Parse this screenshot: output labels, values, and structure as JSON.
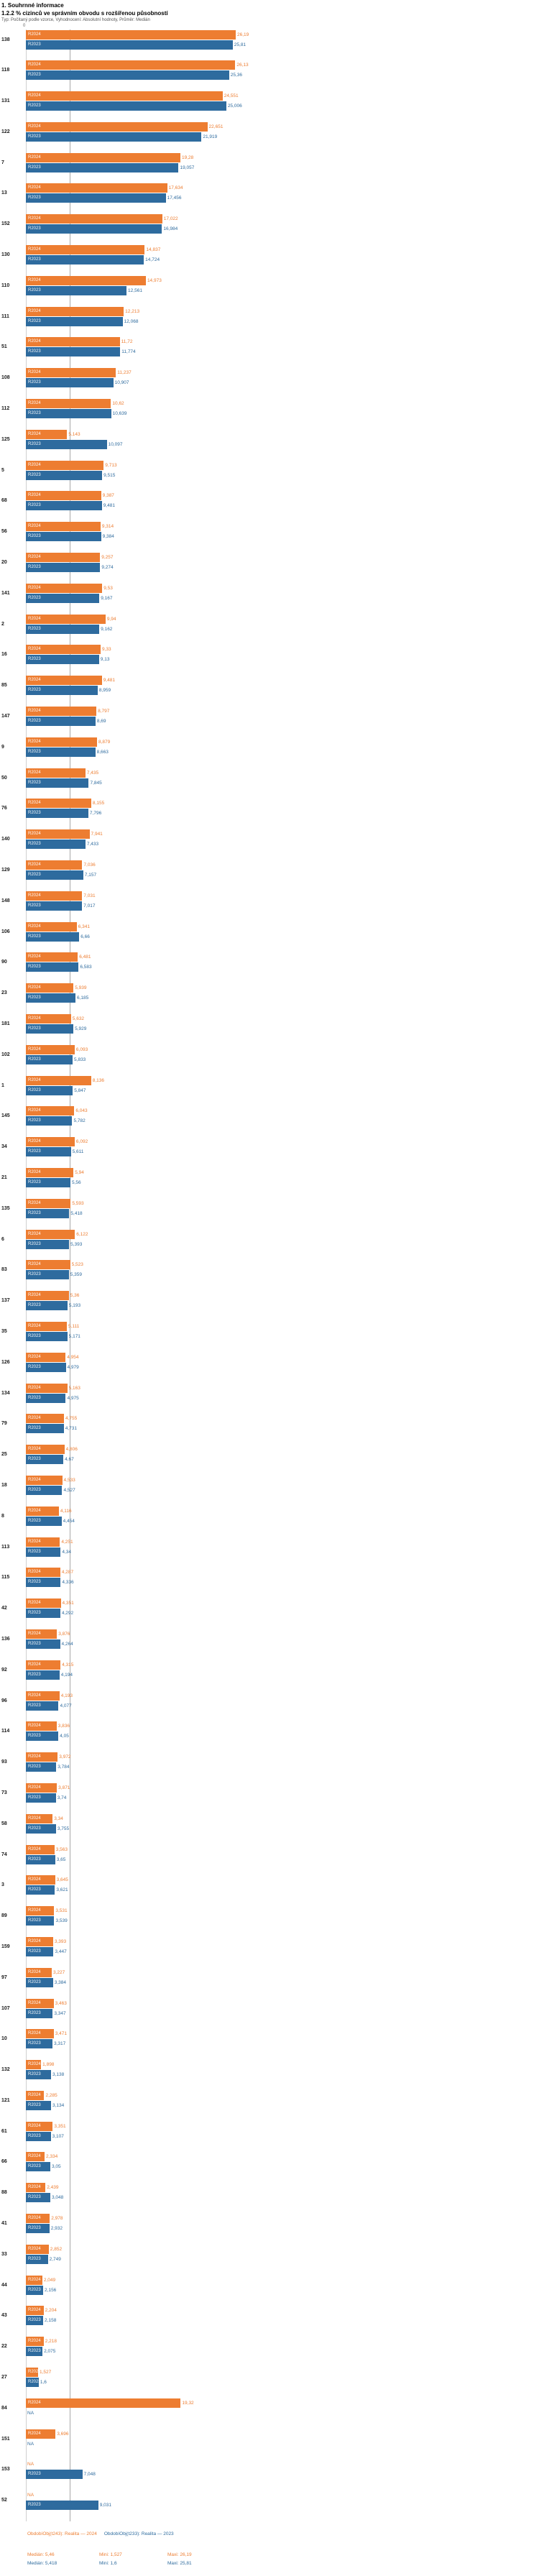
{
  "header": {
    "title": "1. Souhrnné informace",
    "subtitle": "1.2.2 % cizinců ve správním obvodu s rozšířenou působností",
    "meta": "Typ: Počítaný podle vzorce, Vyhodnocení: Absolutní hodnoty, Průměr: Medián"
  },
  "chart_data": {
    "type": "bar",
    "orientation": "horizontal",
    "title": "1.2.2 % cizinců ve správním obvodu s rozšířenou působností",
    "x_axis": {
      "zero_label": "0",
      "min": 0,
      "max": 28,
      "grid": false
    },
    "median_lines": {
      "R2024": 5.46,
      "R2023": 5.418
    },
    "legend_position": "bottom",
    "series": [
      {
        "name": "R2024",
        "legend": "ObdobíObj(t243): Realita — 2024",
        "color": "#ED7D31"
      },
      {
        "name": "R2023",
        "legend": "ObdobíObj(t233): Realita — 2023",
        "color": "#2E6B9E"
      }
    ],
    "rows": [
      {
        "code": "138",
        "r2024": "26,19",
        "r2023": "25,81"
      },
      {
        "code": "118",
        "r2024": "26,13",
        "r2023": "25,36"
      },
      {
        "code": "131",
        "r2024": "24,551",
        "r2023": "25,006"
      },
      {
        "code": "122",
        "r2024": "22,651",
        "r2023": "21,919"
      },
      {
        "code": "7",
        "r2024": "19,28",
        "r2023": "19,057"
      },
      {
        "code": "13",
        "r2024": "17,634",
        "r2023": "17,456"
      },
      {
        "code": "152",
        "r2024": "17,022",
        "r2023": "16,984"
      },
      {
        "code": "130",
        "r2024": "14,837",
        "r2023": "14,724"
      },
      {
        "code": "110",
        "r2024": "14,973",
        "r2023": "12,561"
      },
      {
        "code": "111",
        "r2024": "12,213",
        "r2023": "12,068"
      },
      {
        "code": "51",
        "r2024": "11,72",
        "r2023": "11,774"
      },
      {
        "code": "108",
        "r2024": "11,237",
        "r2023": "10,907"
      },
      {
        "code": "112",
        "r2024": "10,62",
        "r2023": "10,639"
      },
      {
        "code": "125",
        "r2024": "5,143",
        "r2023": "10,097"
      },
      {
        "code": "5",
        "r2024": "9,713",
        "r2023": "9,515"
      },
      {
        "code": "68",
        "r2024": "9,387",
        "r2023": "9,481"
      },
      {
        "code": "56",
        "r2024": "9,314",
        "r2023": "9,384"
      },
      {
        "code": "20",
        "r2024": "9,257",
        "r2023": "9,274"
      },
      {
        "code": "141",
        "r2024": "9,53",
        "r2023": "9,167"
      },
      {
        "code": "2",
        "r2024": "9,94",
        "r2023": "9,162"
      },
      {
        "code": "16",
        "r2024": "9,33",
        "r2023": "9,13"
      },
      {
        "code": "85",
        "r2024": "9,481",
        "r2023": "8,959"
      },
      {
        "code": "147",
        "r2024": "8,797",
        "r2023": "8,69"
      },
      {
        "code": "9",
        "r2024": "8,879",
        "r2023": "8,663"
      },
      {
        "code": "50",
        "r2024": "7,435",
        "r2023": "7,845"
      },
      {
        "code": "76",
        "r2024": "8,155",
        "r2023": "7,796"
      },
      {
        "code": "140",
        "r2024": "7,941",
        "r2023": "7,433"
      },
      {
        "code": "129",
        "r2024": "7,036",
        "r2023": "7,157"
      },
      {
        "code": "148",
        "r2024": "7,031",
        "r2023": "7,017"
      },
      {
        "code": "106",
        "r2024": "6,341",
        "r2023": "6,66"
      },
      {
        "code": "90",
        "r2024": "6,481",
        "r2023": "6,583"
      },
      {
        "code": "23",
        "r2024": "5,939",
        "r2023": "6,185"
      },
      {
        "code": "181",
        "r2024": "5,632",
        "r2023": "5,929"
      },
      {
        "code": "102",
        "r2024": "6,093",
        "r2023": "5,833"
      },
      {
        "code": "1",
        "r2024": "8,136",
        "r2023": "5,847"
      },
      {
        "code": "145",
        "r2024": "6,043",
        "r2023": "5,782"
      },
      {
        "code": "34",
        "r2024": "6,092",
        "r2023": "5,611"
      },
      {
        "code": "21",
        "r2024": "5,94",
        "r2023": "5,56"
      },
      {
        "code": "135",
        "r2024": "5,593",
        "r2023": "5,418"
      },
      {
        "code": "6",
        "r2024": "6,122",
        "r2023": "5,393"
      },
      {
        "code": "83",
        "r2024": "5,523",
        "r2023": "5,359"
      },
      {
        "code": "137",
        "r2024": "5,36",
        "r2023": "5,193"
      },
      {
        "code": "35",
        "r2024": "5,111",
        "r2023": "5,171"
      },
      {
        "code": "126",
        "r2024": "4,954",
        "r2023": "4,979"
      },
      {
        "code": "134",
        "r2024": "5,163",
        "r2023": "4,975"
      },
      {
        "code": "79",
        "r2024": "4,755",
        "r2023": "4,731"
      },
      {
        "code": "25",
        "r2024": "4,806",
        "r2023": "4,67"
      },
      {
        "code": "18",
        "r2024": "4,533",
        "r2023": "4,527"
      },
      {
        "code": "8",
        "r2024": "4,116",
        "r2023": "4,454"
      },
      {
        "code": "113",
        "r2024": "4,251",
        "r2023": "4,34"
      },
      {
        "code": "115",
        "r2024": "4,287",
        "r2023": "4,336"
      },
      {
        "code": "42",
        "r2024": "4,351",
        "r2023": "4,292"
      },
      {
        "code": "136",
        "r2024": "3,876",
        "r2023": "4,264"
      },
      {
        "code": "92",
        "r2024": "4,315",
        "r2023": "4,194"
      },
      {
        "code": "96",
        "r2024": "4,193",
        "r2023": "4,077"
      },
      {
        "code": "114",
        "r2024": "3,836",
        "r2023": "4,05"
      },
      {
        "code": "93",
        "r2024": "3,972",
        "r2023": "3,784"
      },
      {
        "code": "73",
        "r2024": "3,871",
        "r2023": "3,74"
      },
      {
        "code": "58",
        "r2024": "3,34",
        "r2023": "3,755"
      },
      {
        "code": "74",
        "r2024": "3,563",
        "r2023": "3,65"
      },
      {
        "code": "3",
        "r2024": "3,645",
        "r2023": "3,621"
      },
      {
        "code": "89",
        "r2024": "3,531",
        "r2023": "3,539"
      },
      {
        "code": "159",
        "r2024": "3,393",
        "r2023": "3,447"
      },
      {
        "code": "97",
        "r2024": "3,227",
        "r2023": "3,384"
      },
      {
        "code": "107",
        "r2024": "3,463",
        "r2023": "3,347"
      },
      {
        "code": "10",
        "r2024": "3,471",
        "r2023": "3,317"
      },
      {
        "code": "132",
        "r2024": "1,898",
        "r2023": "3,138"
      },
      {
        "code": "121",
        "r2024": "2,285",
        "r2023": "3,134"
      },
      {
        "code": "61",
        "r2024": "3,351",
        "r2023": "3,107"
      },
      {
        "code": "66",
        "r2024": "2,334",
        "r2023": "3,05"
      },
      {
        "code": "88",
        "r2024": "2,439",
        "r2023": "3,048"
      },
      {
        "code": "41",
        "r2024": "2,978",
        "r2023": "2,932"
      },
      {
        "code": "33",
        "r2024": "2,852",
        "r2023": "2,749"
      },
      {
        "code": "44",
        "r2024": "2,049",
        "r2023": "2,156"
      },
      {
        "code": "43",
        "r2024": "2,204",
        "r2023": "2,158"
      },
      {
        "code": "22",
        "r2024": "2,218",
        "r2023": "2,075"
      },
      {
        "code": "27",
        "r2024": "1,527",
        "r2023": "1,6"
      },
      {
        "code": "84",
        "r2024": "19,32",
        "r2023": "NA"
      },
      {
        "code": "151",
        "r2024": "3,696",
        "r2023": "NA"
      },
      {
        "code": "153",
        "r2024": "NA",
        "r2023": "7,048"
      },
      {
        "code": "52",
        "r2024": "NA",
        "r2023": "9,031"
      }
    ]
  },
  "legend": {
    "s2024": {
      "title": "ObdobíObj(t243): Realita — 2024",
      "median": "Medián: 5,46",
      "min": "Mini: 1,527",
      "max": "Maxi: 26,19"
    },
    "s2023": {
      "title": "ObdobíObj(t233): Realita — 2023",
      "median": "Medián: 5,418",
      "min": "Mini: 1,6",
      "max": "Maxi: 25,81"
    }
  }
}
